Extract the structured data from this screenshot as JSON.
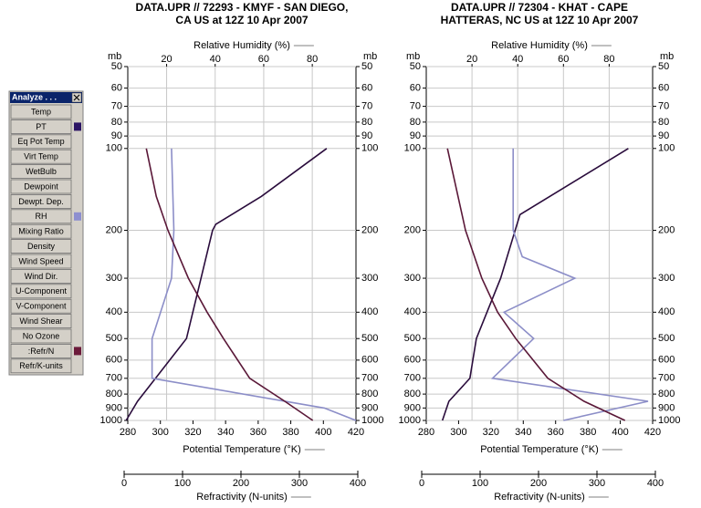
{
  "chart_data": [
    {
      "type": "line",
      "title": [
        "DATA.UPR // 72293 - KMYF - SAN DIEGO,",
        "CA US   at 12Z 10 Apr 2007"
      ],
      "ylabel": "mb",
      "log_y": true,
      "ylim": [
        1000,
        50
      ],
      "yticks": [
        50,
        60,
        70,
        80,
        90,
        100,
        200,
        300,
        400,
        500,
        600,
        700,
        800,
        900,
        1000
      ],
      "xlabel": "Potential Temperature (°K)",
      "xlim": [
        280,
        420
      ],
      "xticks": [
        280,
        300,
        320,
        340,
        360,
        380,
        400,
        420
      ],
      "x2label": "Relative Humidity (%)",
      "x2lim": [
        4,
        98
      ],
      "x2ticks": [
        20,
        40,
        60,
        80
      ],
      "x3label": "Refractivity (N-units)",
      "x3lim": [
        0,
        400
      ],
      "x3ticks": [
        0,
        100,
        200,
        300,
        400
      ],
      "grid": true,
      "series": [
        {
          "color": "#2a0c3c",
          "axis": "x",
          "pressure": [
            1000,
            850,
            700,
            500,
            200,
            190,
            150,
            100
          ],
          "values": [
            279,
            286,
            297,
            316,
            332,
            334,
            362,
            402
          ]
        },
        {
          "color": "#8c8ec8",
          "axis": "x2",
          "pressure": [
            1000,
            900,
            700,
            500,
            300,
            200,
            100
          ],
          "values": [
            98,
            85,
            14,
            14,
            22,
            23,
            22
          ]
        },
        {
          "color": "#5a1838",
          "axis": "x3",
          "pressure": [
            1000,
            850,
            700,
            500,
            400,
            300,
            200,
            150,
            100
          ],
          "values": [
            323,
            275,
            215,
            170,
            142,
            110,
            75,
            55,
            38
          ]
        }
      ]
    },
    {
      "type": "line",
      "title": [
        "DATA.UPR // 72304 - KHAT - CAPE",
        "HATTERAS, NC US   at 12Z 10 Apr 2007"
      ],
      "ylabel": "mb",
      "log_y": true,
      "ylim": [
        1000,
        50
      ],
      "yticks": [
        50,
        60,
        70,
        80,
        90,
        100,
        200,
        300,
        400,
        500,
        600,
        700,
        800,
        900,
        1000
      ],
      "xlabel": "Potential Temperature (°K)",
      "xlim": [
        280,
        420
      ],
      "xticks": [
        280,
        300,
        320,
        340,
        360,
        380,
        400,
        420
      ],
      "x2label": "Relative Humidity (%)",
      "x2lim": [
        0,
        99
      ],
      "x2ticks": [
        20,
        40,
        60,
        80
      ],
      "x3label": "Refractivity (N-units)",
      "x3lim": [
        0,
        400
      ],
      "x3ticks": [
        0,
        100,
        200,
        300,
        400
      ],
      "grid": true,
      "series": [
        {
          "color": "#2a0c3c",
          "axis": "x",
          "pressure": [
            1000,
            850,
            700,
            500,
            300,
            200,
            175,
            100
          ],
          "values": [
            290,
            294,
            307,
            311,
            326,
            335,
            338,
            405
          ]
        },
        {
          "color": "#8c8ec8",
          "axis": "x2",
          "pressure": [
            1000,
            850,
            700,
            500,
            400,
            300,
            250,
            200,
            100
          ],
          "values": [
            60,
            97,
            29,
            47,
            34,
            65,
            42,
            38,
            38
          ]
        },
        {
          "color": "#5a1838",
          "axis": "x3",
          "pressure": [
            1000,
            850,
            700,
            500,
            400,
            300,
            200,
            100
          ],
          "values": [
            348,
            278,
            216,
            161,
            130,
            103,
            75,
            44
          ]
        }
      ]
    }
  ],
  "panel": {
    "title": "Analyze . . .",
    "buttons": [
      {
        "label": "Temp"
      },
      {
        "label": "PT",
        "color": "#2b1464"
      },
      {
        "label": "Eq Pot Temp"
      },
      {
        "label": "Virt Temp"
      },
      {
        "label": "WetBulb"
      },
      {
        "label": "Dewpoint"
      },
      {
        "label": "Dewpt. Dep."
      },
      {
        "label": "RH",
        "color": "#8d8fd0"
      },
      {
        "label": "Mixing Ratio"
      },
      {
        "label": "Density"
      },
      {
        "label": "Wind Speed"
      },
      {
        "label": "Wind Dir."
      },
      {
        "label": "U-Component"
      },
      {
        "label": "V-Component"
      },
      {
        "label": "Wind Shear"
      },
      {
        "label": "No Ozone"
      },
      {
        "label": ":Refr/N",
        "color": "#6b1a3a"
      },
      {
        "label": "Refr/K-units"
      }
    ]
  }
}
